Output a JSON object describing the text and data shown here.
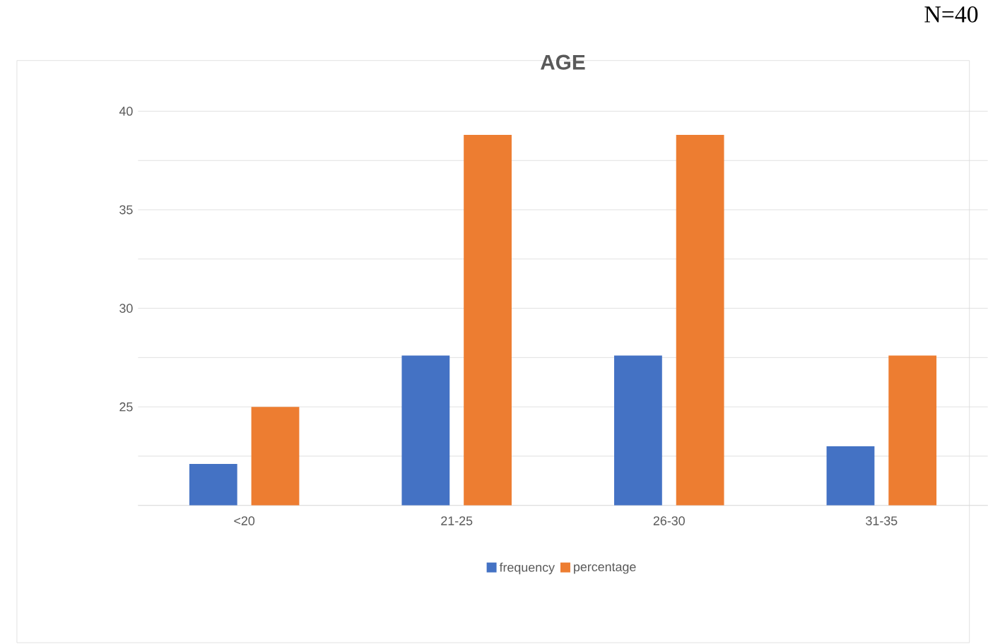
{
  "chart_data": {
    "type": "bar",
    "title": "AGE",
    "categories": [
      "<20",
      "21-25",
      "26-30",
      "31-35"
    ],
    "series": [
      {
        "name": "frequency",
        "color": "#4472c4",
        "values": [
          22.1,
          27.6,
          27.6,
          23
        ]
      },
      {
        "name": "percentage",
        "color": "#ed7d31",
        "values": [
          25,
          38.8,
          38.8,
          27.6
        ]
      }
    ],
    "ylim": [
      20,
      40
    ],
    "yticks": [
      {
        "value": 20,
        "label": null
      },
      {
        "value": 22.5,
        "label": null
      },
      25,
      {
        "value": 27.5,
        "label": null
      },
      30,
      {
        "value": 32.5,
        "label": null
      },
      35,
      {
        "value": 37.5,
        "label": null
      },
      40
    ],
    "grid": "y",
    "legend": "bottom",
    "annotations": [
      "N=40"
    ]
  }
}
